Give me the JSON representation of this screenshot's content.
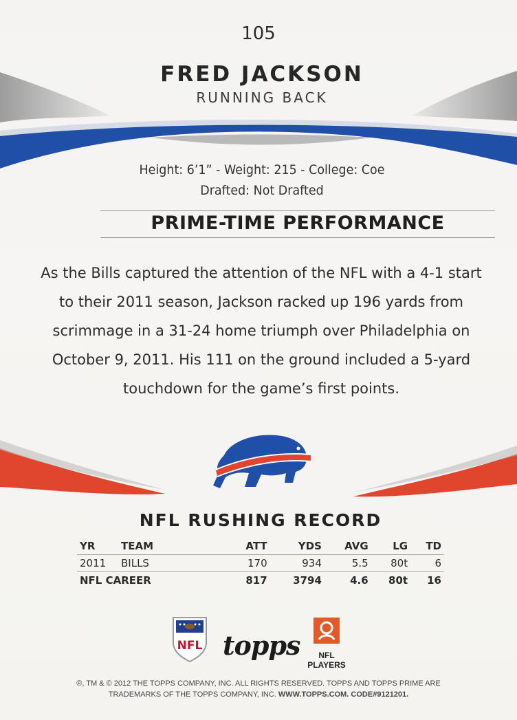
{
  "card": {
    "number": "105",
    "player_name": "FRED JACKSON",
    "position": "RUNNING BACK",
    "bio_line_1": "Height: 6’1” - Weight: 215 - College: Coe",
    "bio_line_2": "Drafted: Not Drafted"
  },
  "highlight": {
    "title": "PRIME-TIME PERFORMANCE",
    "lines": [
      "As the Bills captured the attention of the NFL with a 4-1 start",
      "to their 2011 season, Jackson racked up 196 yards from",
      "scrimmage in a 31-24 home triumph over Philadelphia on",
      "October 9, 2011. His 111 on the ground included a 5-yard",
      "touchdown for the game’s first points."
    ]
  },
  "stats": {
    "title": "NFL RUSHING RECORD",
    "headers": [
      "YR",
      "TEAM",
      "ATT",
      "YDS",
      "AVG",
      "LG",
      "TD"
    ],
    "season_row": [
      "2011",
      "BILLS",
      "170",
      "934",
      "5.5",
      "80t",
      "6"
    ],
    "career_row": [
      "NFL CAREER",
      "817",
      "3794",
      "4.6",
      "80t",
      "16"
    ]
  },
  "logos": {
    "nfl_shield_text": "NFL",
    "topps_text": "topps",
    "nfl_players_text": "NFL PLAYERS",
    "team_logo_icon": "buffalo-logo-icon"
  },
  "legal": {
    "line_1": "®, TM & © 2012 THE TOPPS COMPANY, INC. ALL RIGHTS RESERVED. TOPPS AND TOPPS PRIME ARE",
    "line_2_prefix": "TRADEMARKS OF THE TOPPS COMPANY, INC.",
    "line_2_bold": "WWW.TOPPS.COM. CODE#9121201."
  },
  "colors": {
    "bills_blue": "#1f4fa6",
    "bills_red": "#e0452e",
    "card_background": "#f4f3f1"
  }
}
